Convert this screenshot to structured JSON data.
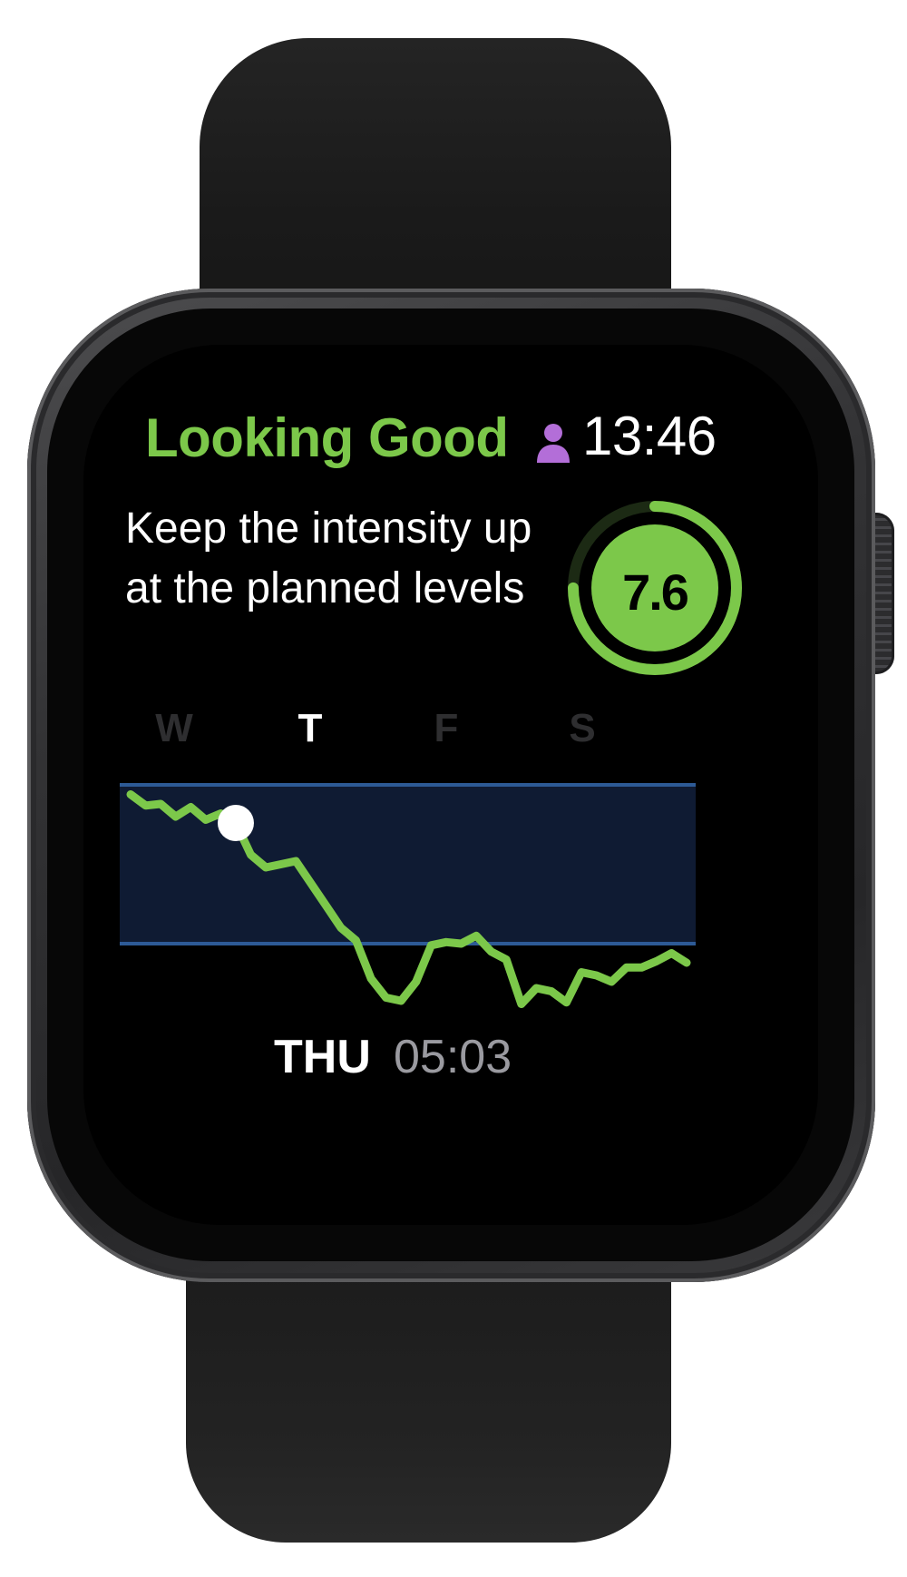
{
  "status": {
    "title": "Looking Good",
    "title_color": "#7cc84a",
    "profile_icon": "person-icon",
    "profile_icon_color": "#b36ed8",
    "clock": "13:46"
  },
  "message": {
    "text": "Keep the intensity up at the planned levels"
  },
  "score": {
    "value": "7.6",
    "progress": 0.75,
    "ring_color": "#7cc84a"
  },
  "days": [
    {
      "label": "W",
      "active": false
    },
    {
      "label": "T",
      "active": true
    },
    {
      "label": "F",
      "active": false
    },
    {
      "label": "S",
      "active": false
    }
  ],
  "chart_data": {
    "type": "line",
    "target_band": {
      "low": 0,
      "high": 1
    },
    "band_color": "#0f1b33",
    "band_line_color": "#2d5a96",
    "line_color": "#7cc84a",
    "series": [
      {
        "values": [
          0.94,
          0.87,
          0.88,
          0.8,
          0.86,
          0.78,
          0.82,
          0.76,
          0.56,
          0.48,
          0.5,
          0.52,
          0.38,
          0.24,
          0.1,
          0.02,
          -0.22,
          -0.34,
          -0.36,
          -0.24,
          -0.01,
          0.01,
          0.0,
          0.05,
          -0.05,
          -0.1,
          -0.38,
          -0.28,
          -0.3,
          -0.37,
          -0.18,
          -0.2,
          -0.24,
          -0.15,
          -0.15,
          -0.11,
          -0.06,
          -0.12
        ]
      }
    ],
    "marker_index": 7
  },
  "readout": {
    "day": "THU",
    "time": "05:03"
  }
}
